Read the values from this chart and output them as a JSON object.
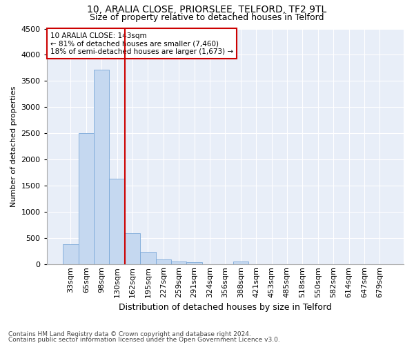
{
  "title": "10, ARALIA CLOSE, PRIORSLEE, TELFORD, TF2 9TL",
  "subtitle": "Size of property relative to detached houses in Telford",
  "xlabel": "Distribution of detached houses by size in Telford",
  "ylabel": "Number of detached properties",
  "categories": [
    "33sqm",
    "65sqm",
    "98sqm",
    "130sqm",
    "162sqm",
    "195sqm",
    "227sqm",
    "259sqm",
    "291sqm",
    "324sqm",
    "356sqm",
    "388sqm",
    "421sqm",
    "453sqm",
    "485sqm",
    "518sqm",
    "550sqm",
    "582sqm",
    "614sqm",
    "647sqm",
    "679sqm"
  ],
  "values": [
    380,
    2500,
    3720,
    1640,
    600,
    240,
    100,
    60,
    40,
    0,
    0,
    60,
    0,
    0,
    0,
    0,
    0,
    0,
    0,
    0,
    0
  ],
  "bar_color": "#c5d8f0",
  "bar_edge_color": "#7aa8d8",
  "vline_after_index": 3,
  "vline_color": "#cc0000",
  "annotation_line1": "10 ARALIA CLOSE: 143sqm",
  "annotation_line2": "← 81% of detached houses are smaller (7,460)",
  "annotation_line3": "18% of semi-detached houses are larger (1,673) →",
  "annotation_box_color": "#cc0000",
  "ylim": [
    0,
    4500
  ],
  "yticks": [
    0,
    500,
    1000,
    1500,
    2000,
    2500,
    3000,
    3500,
    4000,
    4500
  ],
  "footer_line1": "Contains HM Land Registry data © Crown copyright and database right 2024.",
  "footer_line2": "Contains public sector information licensed under the Open Government Licence v3.0.",
  "bg_color": "#e8eef8",
  "title_fontsize": 10,
  "subtitle_fontsize": 9,
  "xlabel_fontsize": 9,
  "ylabel_fontsize": 8,
  "tick_fontsize": 8,
  "footer_fontsize": 6.5
}
